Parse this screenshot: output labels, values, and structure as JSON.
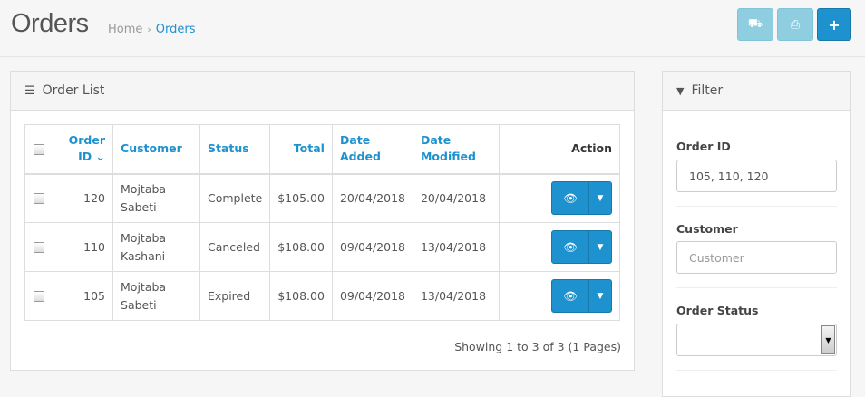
{
  "header": {
    "title": "Orders",
    "breadcrumb": [
      {
        "label": "Home"
      },
      {
        "label": "Orders"
      }
    ],
    "buttons": [
      {
        "icon": "truck-icon"
      },
      {
        "icon": "print-icon"
      },
      {
        "icon": "plus-icon"
      }
    ]
  },
  "order_list": {
    "title": "Order List",
    "icon": "list-icon",
    "columns": [
      "Order ID",
      "Customer",
      "Status",
      "Total",
      "Date Added",
      "Date Modified",
      "Action"
    ],
    "sort_indicator": "⌄",
    "rows": [
      {
        "order_id": "120",
        "customer_first": "Mojtaba",
        "customer_last": "Sabeti",
        "status": "Complete",
        "total": "$105.00",
        "date_added": "20/04/2018",
        "date_modified": "20/04/2018"
      },
      {
        "order_id": "110",
        "customer_first": "Mojtaba",
        "customer_last": "Kashani",
        "status": "Canceled",
        "total": "$108.00",
        "date_added": "09/04/2018",
        "date_modified": "13/04/2018"
      },
      {
        "order_id": "105",
        "customer_first": "Mojtaba",
        "customer_last": "Sabeti",
        "status": "Expired",
        "total": "$108.00",
        "date_added": "09/04/2018",
        "date_modified": "13/04/2018"
      }
    ],
    "pagination_text": "Showing 1 to 3 of 3 (1 Pages)"
  },
  "filter": {
    "title": "Filter",
    "icon": "filter-icon",
    "order_id_label": "Order ID",
    "order_id_value": "105, 110, 120",
    "customer_label": "Customer",
    "customer_placeholder": "Customer",
    "status_label": "Order Status",
    "status_value": ""
  },
  "colors": {
    "accent": "#1e91cf",
    "muted_button": "#8fcde0"
  }
}
